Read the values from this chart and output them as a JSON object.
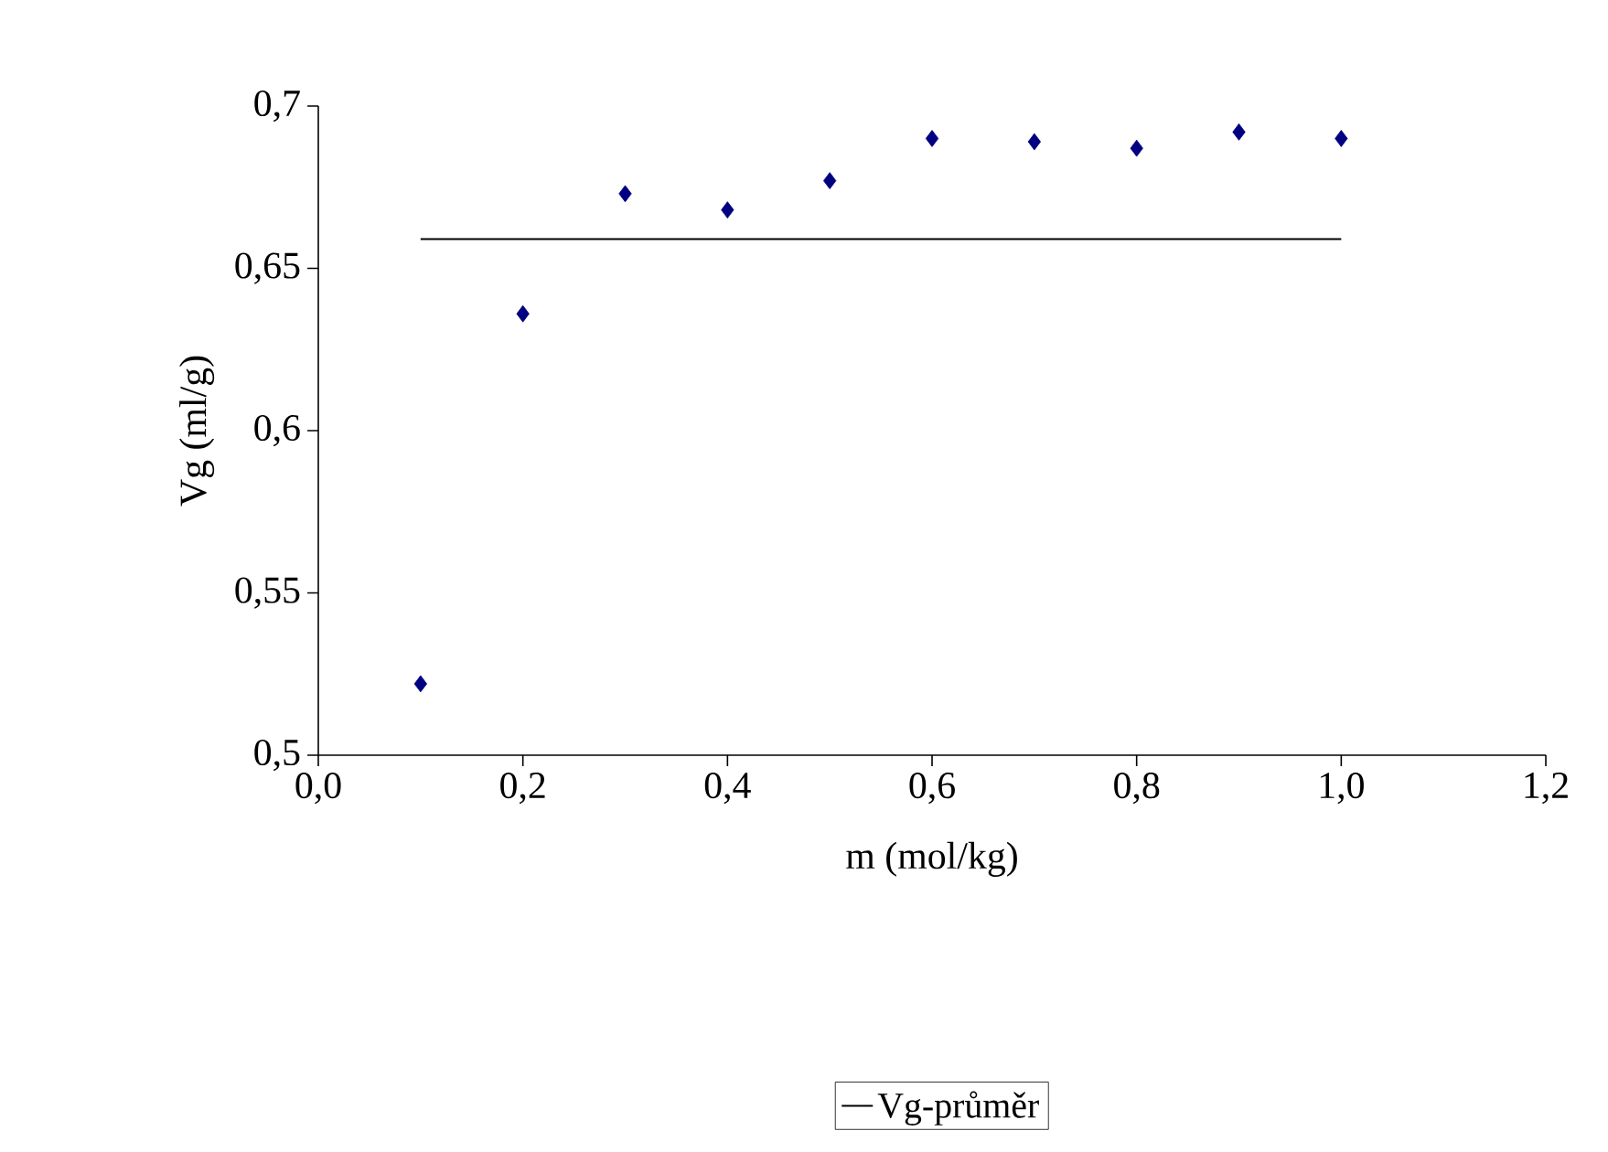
{
  "chart_data": {
    "type": "scatter",
    "xlabel": "m (mol/kg)",
    "ylabel": "Vg (ml/g)",
    "xlim": [
      0,
      1.2
    ],
    "ylim": [
      0.5,
      0.7
    ],
    "xticks": [
      {
        "value": 0,
        "label": "0,0"
      },
      {
        "value": 0.2,
        "label": "0,2"
      },
      {
        "value": 0.4,
        "label": "0,4"
      },
      {
        "value": 0.6,
        "label": "0,6"
      },
      {
        "value": 0.8,
        "label": "0,8"
      },
      {
        "value": 1.0,
        "label": "1,0"
      },
      {
        "value": 1.2,
        "label": "1,2"
      }
    ],
    "yticks": [
      {
        "value": 0.5,
        "label": "0,5"
      },
      {
        "value": 0.55,
        "label": "0,55"
      },
      {
        "value": 0.6,
        "label": "0,6"
      },
      {
        "value": 0.65,
        "label": "0,65"
      },
      {
        "value": 0.7,
        "label": "0,7"
      }
    ],
    "series": [
      {
        "type": "scatter",
        "color": "#000080",
        "marker": "diamond",
        "x": [
          0.1,
          0.2,
          0.3,
          0.4,
          0.5,
          0.6,
          0.7,
          0.8,
          0.9,
          1.0
        ],
        "values": [
          0.522,
          0.636,
          0.673,
          0.668,
          0.677,
          0.69,
          0.689,
          0.687,
          0.692,
          0.69
        ]
      },
      {
        "type": "line",
        "name": "Vg-průměr",
        "color": "#000000",
        "marker": "none",
        "line_style": "solid",
        "x": [
          0.1,
          1.0
        ],
        "values": [
          0.659,
          0.659
        ]
      }
    ],
    "grid": false,
    "legend": "bottom"
  }
}
